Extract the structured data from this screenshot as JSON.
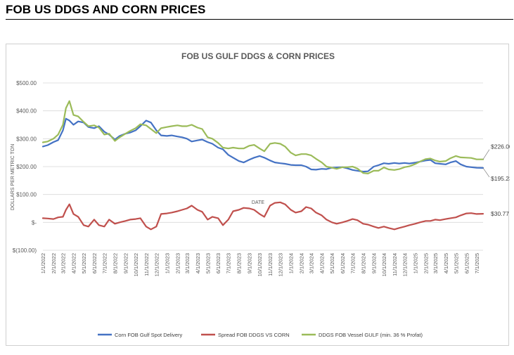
{
  "page": {
    "heading": "FOB US DDGS AND CORN PRICES"
  },
  "chart_data": {
    "type": "line",
    "title": "FOB US GULF DDGS & CORN PRICES",
    "xlabel": "DATE",
    "ylabel": "DOLLARS PER METRIC TON",
    "ylim": [
      -100,
      500
    ],
    "y_ticks": [
      {
        "value": 500,
        "label": "$500.00"
      },
      {
        "value": 400,
        "label": "$400.00"
      },
      {
        "value": 300,
        "label": "$300.00"
      },
      {
        "value": 200,
        "label": "$200.00"
      },
      {
        "value": 100,
        "label": "$100.00"
      },
      {
        "value": 0,
        "label": "$-"
      },
      {
        "value": -100,
        "label": "$(100.00)"
      }
    ],
    "x_start": "2022-01-01",
    "x_end": "2025-07-20",
    "x_ticks": [
      "1/1/2022",
      "2/1/2022",
      "3/1/2022",
      "4/1/2022",
      "5/1/2022",
      "6/1/2022",
      "7/1/2022",
      "8/1/2022",
      "9/1/2022",
      "10/1/2022",
      "11/1/2022",
      "12/1/2022",
      "1/1/2023",
      "2/1/2023",
      "3/1/2023",
      "4/1/2023",
      "5/1/2023",
      "6/1/2023",
      "7/1/2023",
      "8/1/2023",
      "9/1/2023",
      "10/1/2023",
      "11/1/2023",
      "12/1/2023",
      "1/1/2024",
      "2/1/2024",
      "3/1/2024",
      "4/1/2024",
      "5/1/2024",
      "6/1/2024",
      "7/1/2024",
      "8/1/2024",
      "9/1/2024",
      "10/1/2024",
      "11/1/2024",
      "12/1/2024",
      "1/1/2025",
      "2/1/2025",
      "3/1/2025",
      "4/1/2025",
      "5/1/2025",
      "6/1/2025",
      "7/1/2025"
    ],
    "legend_position": "bottom",
    "series": [
      {
        "name": "Corn FOB Gulf Spot Delivery",
        "color": "#4472c4",
        "points": [
          [
            "2022-01-01",
            272
          ],
          [
            "2022-01-15",
            277
          ],
          [
            "2022-02-01",
            288
          ],
          [
            "2022-02-15",
            295
          ],
          [
            "2022-03-01",
            330
          ],
          [
            "2022-03-10",
            372
          ],
          [
            "2022-03-20",
            365
          ],
          [
            "2022-04-01",
            350
          ],
          [
            "2022-04-15",
            362
          ],
          [
            "2022-05-01",
            358
          ],
          [
            "2022-05-15",
            342
          ],
          [
            "2022-06-01",
            338
          ],
          [
            "2022-06-15",
            345
          ],
          [
            "2022-07-01",
            325
          ],
          [
            "2022-07-15",
            315
          ],
          [
            "2022-08-01",
            297
          ],
          [
            "2022-08-15",
            310
          ],
          [
            "2022-09-01",
            318
          ],
          [
            "2022-09-15",
            322
          ],
          [
            "2022-10-01",
            330
          ],
          [
            "2022-10-15",
            345
          ],
          [
            "2022-11-01",
            365
          ],
          [
            "2022-11-15",
            358
          ],
          [
            "2022-12-01",
            330
          ],
          [
            "2022-12-15",
            312
          ],
          [
            "2023-01-01",
            310
          ],
          [
            "2023-01-15",
            312
          ],
          [
            "2023-02-01",
            308
          ],
          [
            "2023-02-15",
            305
          ],
          [
            "2023-03-01",
            300
          ],
          [
            "2023-03-15",
            290
          ],
          [
            "2023-04-01",
            294
          ],
          [
            "2023-04-15",
            297
          ],
          [
            "2023-05-01",
            288
          ],
          [
            "2023-05-15",
            282
          ],
          [
            "2023-06-01",
            268
          ],
          [
            "2023-06-15",
            262
          ],
          [
            "2023-07-01",
            242
          ],
          [
            "2023-07-15",
            232
          ],
          [
            "2023-08-01",
            220
          ],
          [
            "2023-08-15",
            215
          ],
          [
            "2023-09-01",
            225
          ],
          [
            "2023-09-15",
            232
          ],
          [
            "2023-10-01",
            238
          ],
          [
            "2023-10-15",
            232
          ],
          [
            "2023-11-01",
            222
          ],
          [
            "2023-11-15",
            215
          ],
          [
            "2023-12-01",
            212
          ],
          [
            "2023-12-15",
            210
          ],
          [
            "2024-01-01",
            206
          ],
          [
            "2024-01-15",
            205
          ],
          [
            "2024-02-01",
            205
          ],
          [
            "2024-02-15",
            200
          ],
          [
            "2024-03-01",
            190
          ],
          [
            "2024-03-15",
            189
          ],
          [
            "2024-04-01",
            192
          ],
          [
            "2024-04-15",
            191
          ],
          [
            "2024-05-01",
            196
          ],
          [
            "2024-05-15",
            197
          ],
          [
            "2024-06-01",
            198
          ],
          [
            "2024-06-15",
            194
          ],
          [
            "2024-07-01",
            188
          ],
          [
            "2024-07-15",
            185
          ],
          [
            "2024-08-01",
            182
          ],
          [
            "2024-08-15",
            183
          ],
          [
            "2024-09-01",
            200
          ],
          [
            "2024-09-15",
            205
          ],
          [
            "2024-10-01",
            212
          ],
          [
            "2024-10-15",
            210
          ],
          [
            "2024-11-01",
            213
          ],
          [
            "2024-11-15",
            211
          ],
          [
            "2024-12-01",
            213
          ],
          [
            "2024-12-15",
            211
          ],
          [
            "2025-01-01",
            214
          ],
          [
            "2025-01-15",
            218
          ],
          [
            "2025-02-01",
            222
          ],
          [
            "2025-02-15",
            224
          ],
          [
            "2025-03-01",
            212
          ],
          [
            "2025-03-15",
            210
          ],
          [
            "2025-04-01",
            208
          ],
          [
            "2025-04-15",
            215
          ],
          [
            "2025-05-01",
            220
          ],
          [
            "2025-05-15",
            208
          ],
          [
            "2025-06-01",
            200
          ],
          [
            "2025-06-15",
            198
          ],
          [
            "2025-07-01",
            196
          ],
          [
            "2025-07-20",
            195.23
          ]
        ]
      },
      {
        "name": "Spread FOB DDGS VS CORN",
        "color": "#c0504d",
        "points": [
          [
            "2022-01-01",
            15
          ],
          [
            "2022-01-15",
            14
          ],
          [
            "2022-02-01",
            12
          ],
          [
            "2022-02-15",
            18
          ],
          [
            "2022-03-01",
            20
          ],
          [
            "2022-03-10",
            45
          ],
          [
            "2022-03-20",
            65
          ],
          [
            "2022-04-01",
            30
          ],
          [
            "2022-04-15",
            20
          ],
          [
            "2022-05-01",
            -10
          ],
          [
            "2022-05-15",
            -15
          ],
          [
            "2022-06-01",
            10
          ],
          [
            "2022-06-15",
            -10
          ],
          [
            "2022-07-01",
            -15
          ],
          [
            "2022-07-15",
            10
          ],
          [
            "2022-08-01",
            -5
          ],
          [
            "2022-08-15",
            0
          ],
          [
            "2022-09-01",
            5
          ],
          [
            "2022-09-15",
            10
          ],
          [
            "2022-10-01",
            12
          ],
          [
            "2022-10-15",
            15
          ],
          [
            "2022-11-01",
            -15
          ],
          [
            "2022-11-15",
            -25
          ],
          [
            "2022-12-01",
            -15
          ],
          [
            "2022-12-15",
            30
          ],
          [
            "2023-01-01",
            32
          ],
          [
            "2023-01-15",
            35
          ],
          [
            "2023-02-01",
            40
          ],
          [
            "2023-02-15",
            45
          ],
          [
            "2023-03-01",
            50
          ],
          [
            "2023-03-15",
            60
          ],
          [
            "2023-04-01",
            45
          ],
          [
            "2023-04-15",
            38
          ],
          [
            "2023-05-01",
            10
          ],
          [
            "2023-05-15",
            20
          ],
          [
            "2023-06-01",
            15
          ],
          [
            "2023-06-15",
            -10
          ],
          [
            "2023-07-01",
            10
          ],
          [
            "2023-07-15",
            40
          ],
          [
            "2023-08-01",
            45
          ],
          [
            "2023-08-15",
            52
          ],
          [
            "2023-09-01",
            50
          ],
          [
            "2023-09-15",
            45
          ],
          [
            "2023-10-01",
            30
          ],
          [
            "2023-10-15",
            20
          ],
          [
            "2023-11-01",
            60
          ],
          [
            "2023-11-15",
            70
          ],
          [
            "2023-12-01",
            72
          ],
          [
            "2023-12-15",
            65
          ],
          [
            "2024-01-01",
            45
          ],
          [
            "2024-01-15",
            35
          ],
          [
            "2024-02-01",
            40
          ],
          [
            "2024-02-15",
            55
          ],
          [
            "2024-03-01",
            50
          ],
          [
            "2024-03-15",
            35
          ],
          [
            "2024-04-01",
            25
          ],
          [
            "2024-04-15",
            10
          ],
          [
            "2024-05-01",
            0
          ],
          [
            "2024-05-15",
            -5
          ],
          [
            "2024-06-01",
            0
          ],
          [
            "2024-06-15",
            5
          ],
          [
            "2024-07-01",
            12
          ],
          [
            "2024-07-15",
            8
          ],
          [
            "2024-08-01",
            -5
          ],
          [
            "2024-08-15",
            -8
          ],
          [
            "2024-09-01",
            -15
          ],
          [
            "2024-09-15",
            -20
          ],
          [
            "2024-10-01",
            -15
          ],
          [
            "2024-10-15",
            -20
          ],
          [
            "2024-11-01",
            -25
          ],
          [
            "2024-11-15",
            -20
          ],
          [
            "2024-12-01",
            -15
          ],
          [
            "2024-12-15",
            -10
          ],
          [
            "2025-01-01",
            -5
          ],
          [
            "2025-01-15",
            0
          ],
          [
            "2025-02-01",
            5
          ],
          [
            "2025-02-15",
            5
          ],
          [
            "2025-03-01",
            10
          ],
          [
            "2025-03-15",
            8
          ],
          [
            "2025-04-01",
            12
          ],
          [
            "2025-04-15",
            15
          ],
          [
            "2025-05-01",
            18
          ],
          [
            "2025-05-15",
            25
          ],
          [
            "2025-06-01",
            32
          ],
          [
            "2025-06-15",
            33
          ],
          [
            "2025-07-01",
            30
          ],
          [
            "2025-07-20",
            30.77
          ]
        ]
      },
      {
        "name": "DDGS FOB Vessel GULF  (min. 36 % Profat)",
        "color": "#9bbb59",
        "points": [
          [
            "2022-01-01",
            287
          ],
          [
            "2022-01-15",
            290
          ],
          [
            "2022-02-01",
            300
          ],
          [
            "2022-02-15",
            315
          ],
          [
            "2022-03-01",
            350
          ],
          [
            "2022-03-10",
            410
          ],
          [
            "2022-03-20",
            435
          ],
          [
            "2022-04-01",
            385
          ],
          [
            "2022-04-15",
            380
          ],
          [
            "2022-05-01",
            360
          ],
          [
            "2022-05-15",
            345
          ],
          [
            "2022-06-01",
            348
          ],
          [
            "2022-06-15",
            340
          ],
          [
            "2022-07-01",
            315
          ],
          [
            "2022-07-15",
            318
          ],
          [
            "2022-08-01",
            292
          ],
          [
            "2022-08-15",
            305
          ],
          [
            "2022-09-01",
            318
          ],
          [
            "2022-09-15",
            328
          ],
          [
            "2022-10-01",
            338
          ],
          [
            "2022-10-15",
            352
          ],
          [
            "2022-11-01",
            348
          ],
          [
            "2022-11-15",
            335
          ],
          [
            "2022-12-01",
            320
          ],
          [
            "2022-12-15",
            338
          ],
          [
            "2023-01-01",
            342
          ],
          [
            "2023-01-15",
            345
          ],
          [
            "2023-02-01",
            348
          ],
          [
            "2023-02-15",
            345
          ],
          [
            "2023-03-01",
            345
          ],
          [
            "2023-03-15",
            350
          ],
          [
            "2023-04-01",
            340
          ],
          [
            "2023-04-15",
            335
          ],
          [
            "2023-05-01",
            305
          ],
          [
            "2023-05-15",
            300
          ],
          [
            "2023-06-01",
            285
          ],
          [
            "2023-06-15",
            268
          ],
          [
            "2023-07-01",
            265
          ],
          [
            "2023-07-15",
            268
          ],
          [
            "2023-08-01",
            265
          ],
          [
            "2023-08-15",
            265
          ],
          [
            "2023-09-01",
            275
          ],
          [
            "2023-09-15",
            278
          ],
          [
            "2023-10-01",
            265
          ],
          [
            "2023-10-15",
            255
          ],
          [
            "2023-11-01",
            282
          ],
          [
            "2023-11-15",
            285
          ],
          [
            "2023-12-01",
            282
          ],
          [
            "2023-12-15",
            272
          ],
          [
            "2024-01-01",
            250
          ],
          [
            "2024-01-15",
            240
          ],
          [
            "2024-02-01",
            245
          ],
          [
            "2024-02-15",
            245
          ],
          [
            "2024-03-01",
            240
          ],
          [
            "2024-03-15",
            228
          ],
          [
            "2024-04-01",
            215
          ],
          [
            "2024-04-15",
            200
          ],
          [
            "2024-05-01",
            196
          ],
          [
            "2024-05-15",
            192
          ],
          [
            "2024-06-01",
            198
          ],
          [
            "2024-06-15",
            198
          ],
          [
            "2024-07-01",
            200
          ],
          [
            "2024-07-15",
            193
          ],
          [
            "2024-08-01",
            177
          ],
          [
            "2024-08-15",
            175
          ],
          [
            "2024-09-01",
            185
          ],
          [
            "2024-09-15",
            185
          ],
          [
            "2024-10-01",
            197
          ],
          [
            "2024-10-15",
            190
          ],
          [
            "2024-11-01",
            188
          ],
          [
            "2024-11-15",
            191
          ],
          [
            "2024-12-01",
            198
          ],
          [
            "2024-12-15",
            201
          ],
          [
            "2025-01-01",
            209
          ],
          [
            "2025-01-15",
            218
          ],
          [
            "2025-02-01",
            227
          ],
          [
            "2025-02-15",
            229
          ],
          [
            "2025-03-01",
            222
          ],
          [
            "2025-03-15",
            218
          ],
          [
            "2025-04-01",
            220
          ],
          [
            "2025-04-15",
            230
          ],
          [
            "2025-05-01",
            238
          ],
          [
            "2025-05-15",
            233
          ],
          [
            "2025-06-01",
            232
          ],
          [
            "2025-06-15",
            231
          ],
          [
            "2025-07-01",
            226
          ],
          [
            "2025-07-20",
            226
          ]
        ]
      }
    ],
    "annotations": [
      {
        "label": "$226.00",
        "value": 226
      },
      {
        "label": "$195.23",
        "value": 195.23
      },
      {
        "label": "$30.77",
        "value": 30.77
      }
    ]
  }
}
